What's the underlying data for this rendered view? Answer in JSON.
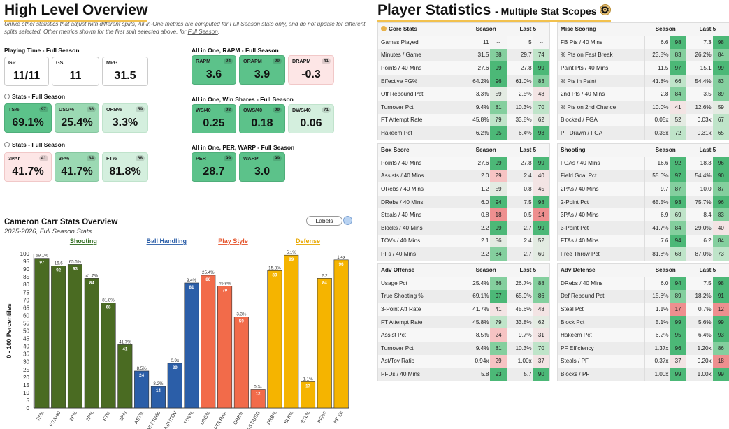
{
  "high_level": {
    "title": "High Level Overview",
    "note_parts": [
      "Unlike other statistics that adjust with different splits, All-in-One metrics are computed for ",
      "Full Season stats",
      " only, and do not update for different splits selected. Other metrics shown for the first split selected above, for ",
      "Full Season",
      "."
    ],
    "sections": {
      "playing": "Playing Time - Full Season",
      "stats1": "Stats - Full Season",
      "stats2": "Stats - Full Season",
      "rapm": "All in One, RAPM - Full Season",
      "ws": "All in One, Win Shares - Full Season",
      "per": "All in One, PER, WARP - Full Season"
    },
    "cards": [
      {
        "label": "GP",
        "value": "11/11",
        "pct": ""
      },
      {
        "label": "GS",
        "value": "11",
        "pct": ""
      },
      {
        "label": "MPG",
        "value": "31.5",
        "pct": ""
      },
      {
        "label": "TS%",
        "value": "69.1%",
        "pct": "97"
      },
      {
        "label": "USG%",
        "value": "25.4%",
        "pct": "86"
      },
      {
        "label": "ORB%",
        "value": "3.3%",
        "pct": "59"
      },
      {
        "label": "3PAr",
        "value": "41.7%",
        "pct": "41"
      },
      {
        "label": "3P%",
        "value": "41.7%",
        "pct": "84"
      },
      {
        "label": "FT%",
        "value": "81.8%",
        "pct": "68"
      },
      {
        "label": "RAPM",
        "value": "3.6",
        "pct": "94"
      },
      {
        "label": "ORAPM",
        "value": "3.9",
        "pct": "99"
      },
      {
        "label": "DRAPM",
        "value": "-0.3",
        "pct": "41"
      },
      {
        "label": "WS/40",
        "value": "0.25",
        "pct": "98"
      },
      {
        "label": "OWS/40",
        "value": "0.18",
        "pct": "99"
      },
      {
        "label": "DWS/40",
        "value": "0.06",
        "pct": "71"
      },
      {
        "label": "PER",
        "value": "28.7",
        "pct": "99"
      },
      {
        "label": "WARP",
        "value": "3.0",
        "pct": "99"
      }
    ]
  },
  "overview": {
    "title": "Cameron Carr Stats Overview",
    "subtitle": "2025-2026, Full Season Stats",
    "labels_button": "Labels"
  },
  "chart_data": {
    "type": "bar",
    "ylabel": "0 - 100 Percentiles",
    "ylim": [
      0,
      100
    ],
    "yticks": [
      0,
      5,
      10,
      15,
      20,
      25,
      30,
      35,
      40,
      45,
      50,
      55,
      60,
      65,
      70,
      75,
      80,
      85,
      90,
      95,
      100
    ],
    "groups": [
      {
        "name": "Shooting",
        "color": "#2f6b1e"
      },
      {
        "name": "Ball Handling",
        "color": "#2b5ea8"
      },
      {
        "name": "Play Style",
        "color": "#e5542c"
      },
      {
        "name": "Defense",
        "color": "#e8a800"
      }
    ],
    "categories": [
      "TS%",
      "FGA/40",
      "2P%",
      "3P%",
      "FT%",
      "3PAr",
      "AST%",
      "AST Ratio",
      "AST/TOV",
      "TOV%",
      "USG%",
      "FTA Rate",
      "ORB%",
      "AST/USG",
      "DRB%",
      "BLK%",
      "STL%",
      "PF/40",
      "PF Eff"
    ],
    "group_index": [
      0,
      0,
      0,
      0,
      0,
      0,
      1,
      1,
      1,
      1,
      2,
      2,
      2,
      2,
      3,
      3,
      3,
      3,
      3
    ],
    "values": [
      97,
      92,
      93,
      84,
      68,
      41,
      24,
      14,
      29,
      81,
      86,
      79,
      59,
      12,
      89,
      99,
      17,
      84,
      96
    ],
    "raw_labels": [
      "69.1%",
      "16.6",
      "65.5%",
      "41.7%",
      "81.8%",
      "41.7%",
      "8.5%",
      "8.2%",
      "0.9x",
      "9.4%",
      "25.4%",
      "45.8%",
      "3.3%",
      "0.3x",
      "15.8%",
      "5.1%",
      "1.1%",
      "2.2",
      "1.4x"
    ],
    "colors": [
      "#4a6b22",
      "#2b5ea8",
      "#f26b4a",
      "#f5b400"
    ]
  },
  "player_stats": {
    "title": "Player Statistics",
    "subtitle": "- Multiple Stat Scopes",
    "icon": "settings-icon",
    "col_season": "Season",
    "col_last5": "Last 5",
    "tables": [
      {
        "name": "Core Stats",
        "rows": [
          [
            "Games Played",
            "11",
            "--",
            "5",
            "--"
          ],
          [
            "Minutes / Game",
            "31.5",
            "88",
            "29.7",
            "74"
          ],
          [
            "Points / 40 Mins",
            "27.6",
            "99",
            "27.8",
            "99"
          ],
          [
            "Effective FG%",
            "64.2%",
            "96",
            "61.0%",
            "83"
          ],
          [
            "Off Rebound Pct",
            "3.3%",
            "59",
            "2.5%",
            "48"
          ],
          [
            "Turnover Pct",
            "9.4%",
            "81",
            "10.3%",
            "70"
          ],
          [
            "FT Attempt Rate",
            "45.8%",
            "79",
            "33.8%",
            "62"
          ],
          [
            "Hakeem Pct",
            "6.2%",
            "95",
            "6.4%",
            "93"
          ]
        ]
      },
      {
        "name": "Misc Scoring",
        "rows": [
          [
            "FB Pts / 40 Mins",
            "6.6",
            "98",
            "7.3",
            "98"
          ],
          [
            "% Pts on Fast Break",
            "23.8%",
            "83",
            "26.2%",
            "84"
          ],
          [
            "Paint Pts / 40 Mins",
            "11.5",
            "97",
            "15.1",
            "99"
          ],
          [
            "% Pts in Paint",
            "41.8%",
            "66",
            "54.4%",
            "83"
          ],
          [
            "2nd Pts / 40 Mins",
            "2.8",
            "84",
            "3.5",
            "89"
          ],
          [
            "% Pts on 2nd Chance",
            "10.0%",
            "41",
            "12.6%",
            "59"
          ],
          [
            "Blocked / FGA",
            "0.05x",
            "52",
            "0.03x",
            "67"
          ],
          [
            "PF Drawn / FGA",
            "0.35x",
            "72",
            "0.31x",
            "65"
          ]
        ]
      },
      {
        "name": "Box Score",
        "rows": [
          [
            "Points / 40 Mins",
            "27.6",
            "99",
            "27.8",
            "99"
          ],
          [
            "Assists / 40 Mins",
            "2.0",
            "29",
            "2.4",
            "40"
          ],
          [
            "ORebs / 40 Mins",
            "1.2",
            "59",
            "0.8",
            "45"
          ],
          [
            "DRebs / 40 Mins",
            "6.0",
            "94",
            "7.5",
            "98"
          ],
          [
            "Steals / 40 Mins",
            "0.8",
            "18",
            "0.5",
            "14"
          ],
          [
            "Blocks / 40 Mins",
            "2.2",
            "99",
            "2.7",
            "99"
          ],
          [
            "TOVs / 40 Mins",
            "2.1",
            "56",
            "2.4",
            "52"
          ],
          [
            "PFs / 40 Mins",
            "2.2",
            "84",
            "2.7",
            "60"
          ]
        ]
      },
      {
        "name": "Shooting",
        "rows": [
          [
            "FGAs / 40 Mins",
            "16.6",
            "92",
            "18.3",
            "96"
          ],
          [
            "Field Goal Pct",
            "55.6%",
            "97",
            "54.4%",
            "90"
          ],
          [
            "2PAs / 40 Mins",
            "9.7",
            "87",
            "10.0",
            "87"
          ],
          [
            "2-Point Pct",
            "65.5%",
            "93",
            "75.7%",
            "96"
          ],
          [
            "3PAs / 40 Mins",
            "6.9",
            "69",
            "8.4",
            "83"
          ],
          [
            "3-Point Pct",
            "41.7%",
            "84",
            "29.0%",
            "40"
          ],
          [
            "FTAs / 40 Mins",
            "7.6",
            "94",
            "6.2",
            "84"
          ],
          [
            "Free Throw Pct",
            "81.8%",
            "68",
            "87.0%",
            "73"
          ]
        ]
      },
      {
        "name": "Adv Offense",
        "rows": [
          [
            "Usage Pct",
            "25.4%",
            "86",
            "26.7%",
            "88"
          ],
          [
            "True Shooting %",
            "69.1%",
            "97",
            "65.9%",
            "86"
          ],
          [
            "3-Point Att Rate",
            "41.7%",
            "41",
            "45.6%",
            "48"
          ],
          [
            "FT Attempt Rate",
            "45.8%",
            "79",
            "33.8%",
            "62"
          ],
          [
            "Assist Pct",
            "8.5%",
            "24",
            "9.7%",
            "31"
          ],
          [
            "Turnover Pct",
            "9.4%",
            "81",
            "10.3%",
            "70"
          ],
          [
            "Ast/Tov Ratio",
            "0.94x",
            "29",
            "1.00x",
            "37"
          ],
          [
            "PFDs / 40 Mins",
            "5.8",
            "93",
            "5.7",
            "90"
          ]
        ]
      },
      {
        "name": "Adv Defense",
        "rows": [
          [
            "DRebs / 40 Mins",
            "6.0",
            "94",
            "7.5",
            "98"
          ],
          [
            "Def Rebound Pct",
            "15.8%",
            "89",
            "18.2%",
            "91"
          ],
          [
            "Steal Pct",
            "1.1%",
            "17",
            "0.7%",
            "12"
          ],
          [
            "Block Pct",
            "5.1%",
            "99",
            "5.6%",
            "99"
          ],
          [
            "Hakeem Pct",
            "6.2%",
            "95",
            "6.4%",
            "93"
          ],
          [
            "PF Efficiency",
            "1.37x",
            "96",
            "1.20x",
            "86"
          ],
          [
            "Steals / PF",
            "0.37x",
            "37",
            "0.20x",
            "18"
          ],
          [
            "Blocks / PF",
            "1.00x",
            "99",
            "1.00x",
            "99"
          ]
        ]
      }
    ]
  }
}
